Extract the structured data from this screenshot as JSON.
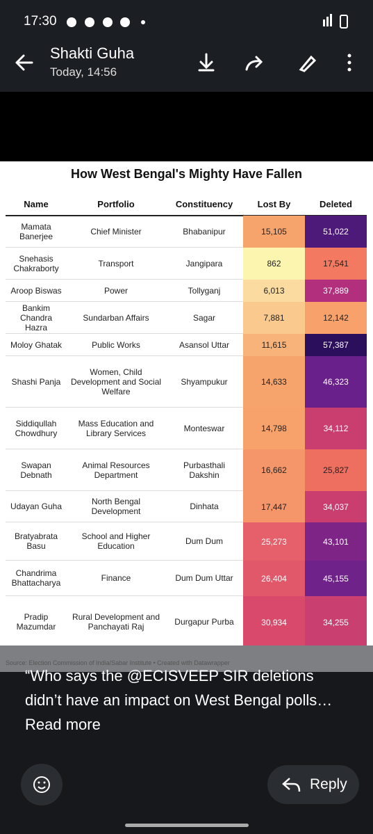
{
  "status_bar": {
    "time": "17:30"
  },
  "header": {
    "title": "Shakti Guha",
    "subtitle": "Today, 14:56"
  },
  "table": {
    "title": "How West Bengal's Mighty Have Fallen",
    "columns": [
      "Name",
      "Portfolio",
      "Constituency",
      "Lost By",
      "Deleted"
    ],
    "rows": [
      [
        "Mamata Banerjee",
        "Chief Minister",
        "Bhabanipur",
        "15,105",
        "51,022"
      ],
      [
        "Snehasis Chakraborty",
        "Transport",
        "Jangipara",
        "862",
        "17,541"
      ],
      [
        "Aroop Biswas",
        "Power",
        "Tollyganj",
        "6,013",
        "37,889"
      ],
      [
        "Bankim Chandra Hazra",
        "Sundarban Affairs",
        "Sagar",
        "7,881",
        "12,142"
      ],
      [
        "Moloy Ghatak",
        "Public Works",
        "Asansol Uttar",
        "11,615",
        "57,387"
      ],
      [
        "Shashi Panja",
        "Women, Child Development and Social Welfare",
        "Shyampukur",
        "14,633",
        "46,323"
      ],
      [
        "Siddiqullah Chowdhury",
        "Mass Education and Library Services",
        "Monteswar",
        "14,798",
        "34,112"
      ],
      [
        "Swapan Debnath",
        "Animal Resources Department",
        "Purbasthali Dakshin",
        "16,662",
        "25,827"
      ],
      [
        "Udayan Guha",
        "North Bengal Development",
        "Dinhata",
        "17,447",
        "34,037"
      ],
      [
        "Bratyabrata Basu",
        "School and Higher Education",
        "Dum Dum",
        "25,273",
        "43,101"
      ],
      [
        "Chandrima Bhattacharya",
        "Finance",
        "Dum Dum Uttar",
        "26,404",
        "45,155"
      ],
      [
        "Pradip Mazumdar",
        "Rural Development and Panchayati Raj",
        "Durgapur Purba",
        "30,934",
        "34,255"
      ]
    ],
    "lost_by_colors": [
      "#f7a46c",
      "#fbf5b0",
      "#fbdba0",
      "#f9c98d",
      "#f8b37a",
      "#f7a46c",
      "#f7a26b",
      "#f5966a",
      "#f4956a",
      "#e5606a",
      "#e2586b",
      "#d8496c"
    ],
    "deleted_colors": [
      "#4d1a7a",
      "#f37a60",
      "#b12f7d",
      "#f8a16a",
      "#2b0f5c",
      "#6a208a",
      "#c93e6f",
      "#ee6e60",
      "#c93e6f",
      "#7e2487",
      "#6f228a",
      "#c83f70"
    ],
    "source": "Source: Election Commission of India/Sabar Institute • Created with Datawrapper"
  },
  "caption": {
    "text": "“Who says the @ECISVEEP SIR deletions didn’t have an impact on West Bengal polls…",
    "more": "Read more"
  },
  "actions": {
    "reply": "Reply"
  }
}
